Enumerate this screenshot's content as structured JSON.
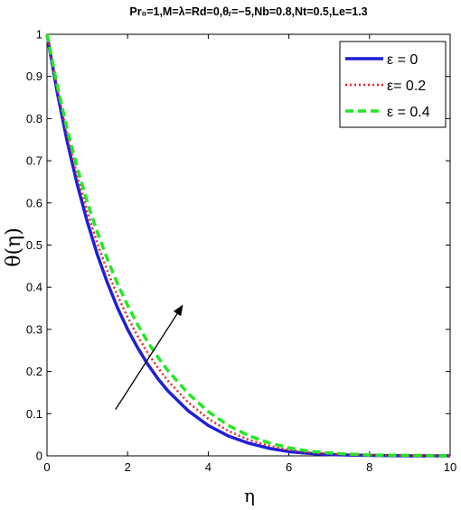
{
  "chart_data": {
    "type": "line",
    "title": "Pr₀=1,M=λ=Rd=0,θᵣ=−5,Nb=0.8,Nt=0.5,Le=1.3",
    "xlabel": "η",
    "ylabel": "θ(η)",
    "xlim": [
      0,
      10
    ],
    "ylim": [
      0,
      1
    ],
    "xticks": [
      0,
      2,
      4,
      6,
      8,
      10
    ],
    "yticks": [
      0,
      0.1,
      0.2,
      0.3,
      0.4,
      0.5,
      0.6,
      0.7,
      0.8,
      0.9,
      1
    ],
    "grid": false,
    "legend_position": "top-right",
    "x": [
      0,
      0.25,
      0.5,
      0.75,
      1,
      1.25,
      1.5,
      1.75,
      2,
      2.25,
      2.5,
      2.75,
      3,
      3.5,
      4,
      4.5,
      5,
      5.5,
      6,
      6.5,
      7,
      7.5,
      8,
      9,
      10
    ],
    "series": [
      {
        "name": "ε = 0",
        "color": "#1f1fd6",
        "style": "solid",
        "values": [
          1,
          0.864,
          0.746,
          0.644,
          0.555,
          0.477,
          0.41,
          0.351,
          0.3,
          0.256,
          0.217,
          0.183,
          0.154,
          0.107,
          0.072,
          0.047,
          0.03,
          0.018,
          0.01,
          0.006,
          0.003,
          0.002,
          0.001,
          0,
          0
        ]
      },
      {
        "name": "ε= 0.2",
        "color": "#e8232a",
        "style": "dotted",
        "values": [
          1,
          0.872,
          0.761,
          0.664,
          0.579,
          0.504,
          0.438,
          0.38,
          0.329,
          0.284,
          0.244,
          0.209,
          0.178,
          0.127,
          0.088,
          0.059,
          0.038,
          0.024,
          0.014,
          0.008,
          0.005,
          0.003,
          0.002,
          0.001,
          0
        ]
      },
      {
        "name": "ε = 0.4",
        "color": "#22e822",
        "style": "dashed",
        "values": [
          1,
          0.88,
          0.775,
          0.683,
          0.602,
          0.53,
          0.466,
          0.408,
          0.357,
          0.311,
          0.27,
          0.234,
          0.202,
          0.148,
          0.105,
          0.072,
          0.048,
          0.031,
          0.019,
          0.011,
          0.007,
          0.004,
          0.002,
          0.001,
          0
        ]
      }
    ],
    "annotations": [
      {
        "type": "arrow",
        "from": [
          1.7,
          0.11
        ],
        "to": [
          3.35,
          0.355
        ],
        "color": "#000000"
      }
    ]
  }
}
